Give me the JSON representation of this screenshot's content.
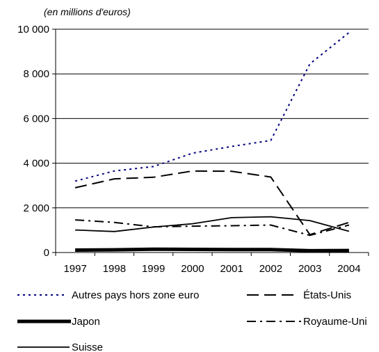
{
  "chart_data": {
    "type": "line",
    "unit_label": "(en millions d'euros)",
    "categories": [
      "1997",
      "1998",
      "1999",
      "2000",
      "2001",
      "2002",
      "2003",
      "2004"
    ],
    "y_ticks": [
      "0",
      "2 000",
      "4 000",
      "6 000",
      "8 000",
      "10 000"
    ],
    "ylim": [
      0,
      10000
    ],
    "grid": true,
    "legend_position": "bottom",
    "series": [
      {
        "name": "Autres pays hors zone euro",
        "values": [
          3200,
          3650,
          3850,
          4450,
          4750,
          5020,
          8450,
          9850
        ],
        "color": "#000080",
        "style": "dotted"
      },
      {
        "name": "États-Unis",
        "values": [
          2900,
          3300,
          3370,
          3650,
          3640,
          3380,
          800,
          1350
        ],
        "color": "#000000",
        "style": "dashed"
      },
      {
        "name": "Japon",
        "values": [
          110,
          120,
          150,
          140,
          130,
          130,
          80,
          90
        ],
        "color": "#000000",
        "style": "thick"
      },
      {
        "name": "Royaume-Uni",
        "values": [
          1460,
          1350,
          1150,
          1180,
          1200,
          1230,
          770,
          1230
        ],
        "color": "#000000",
        "style": "dash-dot"
      },
      {
        "name": "Suisse",
        "values": [
          1010,
          940,
          1140,
          1290,
          1560,
          1600,
          1430,
          950
        ],
        "color": "#000000",
        "style": "solid"
      }
    ]
  }
}
